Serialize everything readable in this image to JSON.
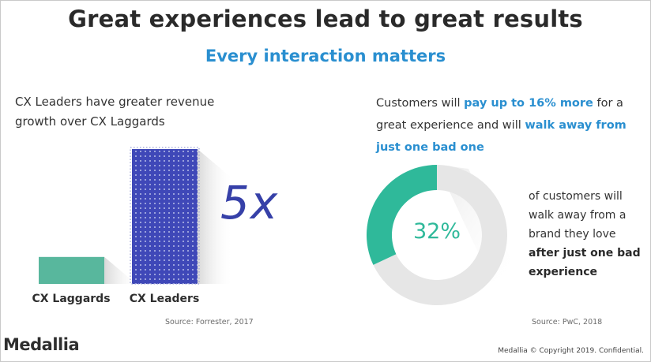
{
  "header": {
    "title": "Great experiences lead to great results",
    "subtitle": "Every interaction matters"
  },
  "left_panel": {
    "statement_line1": "CX Leaders have greater revenue",
    "statement_line2": "growth over CX Laggards",
    "multiplier": "5x",
    "source": "Source: Forrester, 2017"
  },
  "right_panel": {
    "statement_part1": "Customers will ",
    "statement_highlight1": "pay up to 16% more",
    "statement_part2": " for a great experience and will ",
    "statement_highlight2": "walk away from just one bad one",
    "donut_value_label": "32%",
    "desc_normal": "of customers will walk away from a brand they love",
    "desc_bold": "after just one bad experience",
    "source": "Source: PwC, 2018"
  },
  "footer": {
    "logo": "Medallia",
    "copyright": "Medallia © Copyright 2019. Confidential."
  },
  "colors": {
    "accent_blue": "#2a8fd0",
    "leaders_bar": "#3f48b8",
    "laggards_bar": "#58b79d",
    "donut_fill": "#2fb99a",
    "donut_track": "#e6e6e6",
    "multiplier_text": "#3640a8"
  },
  "chart_data": [
    {
      "type": "bar",
      "categories": [
        "CX Laggards",
        "CX Leaders"
      ],
      "values": [
        1,
        5
      ],
      "title": "",
      "xlabel": "",
      "ylabel": "",
      "ylim": [
        0,
        5
      ],
      "annotations": [
        "5x"
      ]
    },
    {
      "type": "pie",
      "labels": [
        "customers who walk away after one bad experience",
        ""
      ],
      "values": [
        32,
        68
      ],
      "center_label": "32%"
    }
  ]
}
